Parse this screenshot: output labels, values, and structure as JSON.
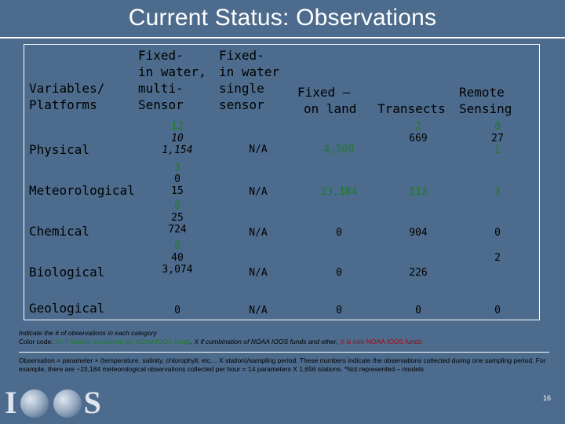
{
  "slide": {
    "title": "Current Status: Observations",
    "page_number": "16"
  },
  "table": {
    "header": {
      "variables_platforms": [
        "Variables/",
        "Platforms"
      ],
      "fixed_in_water_multi": [
        "Fixed-",
        "in water,",
        "multi-",
        "Sensor"
      ],
      "fixed_in_water_single": [
        "Fixed-",
        "in water",
        "single",
        "sensor"
      ],
      "fixed_on_land": [
        "Fixed –",
        "on land"
      ],
      "transects": [
        "Transects"
      ],
      "remote_sensing": [
        "Remote",
        "Sensing"
      ]
    },
    "rows": [
      {
        "label": "Physical",
        "fixed_in_water_multi": [
          "12",
          "10",
          "1,154"
        ],
        "fixed_in_water_single": "N/A",
        "fixed_on_land": "4,508",
        "transects": [
          "2",
          "669"
        ],
        "remote_sensing": [
          "0",
          "27",
          "1"
        ]
      },
      {
        "label": "Meteorological",
        "fixed_in_water_multi": [
          "3",
          "0",
          "15"
        ],
        "fixed_in_water_single": "N/A",
        "fixed_on_land": "23,184",
        "transects": [
          "113"
        ],
        "remote_sensing": [
          "3"
        ]
      },
      {
        "label": "Chemical",
        "fixed_in_water_multi": [
          "0",
          "25",
          "724"
        ],
        "fixed_in_water_single": "N/A",
        "fixed_on_land": "0",
        "transects": [
          "904"
        ],
        "remote_sensing": [
          "0"
        ]
      },
      {
        "label": "Biological",
        "fixed_in_water_multi": [
          "0",
          "40",
          "3,074"
        ],
        "fixed_in_water_single": "N/A",
        "fixed_on_land": "0",
        "transects": [
          "226"
        ],
        "remote_sensing": [
          "2"
        ]
      },
      {
        "label": "Geological",
        "fixed_in_water_multi": [
          "0"
        ],
        "fixed_in_water_single": "N/A",
        "fixed_on_land": "0",
        "transects": [
          "0"
        ],
        "remote_sensing": [
          "0"
        ]
      }
    ]
  },
  "notes": {
    "line1": "Indicate the # of observations in each category",
    "line2_prefix": "Color code:",
    "line2_green": "X# if funded exclusively by NOAA IOOS funds",
    "line2_mid": "X if combination of NOAA IOOS funds and other",
    "line2_red": "X is non-NOAA IOOS funds",
    "observation_def": "Observation = parameter × (temperature, salinity, chlorophyll, etc… X  station)/sampling period.  These numbers indicate the observations collected during one sampling period.  For example, there are ~23,184 meteorological observations collected per hour  = 14 parameters X 1,656 stations.  *Not represented – models"
  },
  "logo": {
    "text_left": "I",
    "text_right": "S"
  },
  "colors": {
    "background": "#4d6c8d",
    "green": "#1f7a2a",
    "red": "#b30000"
  }
}
